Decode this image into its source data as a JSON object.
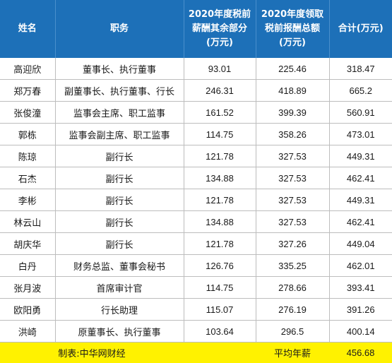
{
  "table": {
    "headers": {
      "name": "姓名",
      "position": "职务",
      "other_pay": [
        "2020年度税前",
        "薪酬其余部分",
        "(万元)"
      ],
      "total_pay": [
        "2020年度领取",
        "税前报酬总额",
        "(万元)"
      ],
      "sum": "合计(万元)"
    },
    "rows": [
      {
        "name": "高迎欣",
        "position": "董事长、执行董事",
        "other": "93.01",
        "total": "225.46",
        "sum": "318.47"
      },
      {
        "name": "郑万春",
        "position": "副董事长、执行董事、行长",
        "other": "246.31",
        "total": "418.89",
        "sum": "665.2"
      },
      {
        "name": "张俊潼",
        "position": "监事会主席、职工监事",
        "other": "161.52",
        "total": "399.39",
        "sum": "560.91"
      },
      {
        "name": "郭栋",
        "position": "监事会副主席、职工监事",
        "other": "114.75",
        "total": "358.26",
        "sum": "473.01"
      },
      {
        "name": "陈琼",
        "position": "副行长",
        "other": "121.78",
        "total": "327.53",
        "sum": "449.31"
      },
      {
        "name": "石杰",
        "position": "副行长",
        "other": "134.88",
        "total": "327.53",
        "sum": "462.41"
      },
      {
        "name": "李彬",
        "position": "副行长",
        "other": "121.78",
        "total": "327.53",
        "sum": "449.31"
      },
      {
        "name": "林云山",
        "position": "副行长",
        "other": "134.88",
        "total": "327.53",
        "sum": "462.41"
      },
      {
        "name": "胡庆华",
        "position": "副行长",
        "other": "121.78",
        "total": "327.26",
        "sum": "449.04"
      },
      {
        "name": "白丹",
        "position": "财务总监、董事会秘书",
        "other": "126.76",
        "total": "335.25",
        "sum": "462.01"
      },
      {
        "name": "张月波",
        "position": "首席审计官",
        "other": "114.75",
        "total": "278.66",
        "sum": "393.41"
      },
      {
        "name": "欧阳勇",
        "position": "行长助理",
        "other": "115.07",
        "total": "276.19",
        "sum": "391.26"
      },
      {
        "name": "洪崎",
        "position": "原董事长、执行董事",
        "other": "103.64",
        "total": "296.5",
        "sum": "400.14"
      }
    ]
  },
  "footer": {
    "credit": "制表:中华网财经",
    "avg_label": "平均年薪",
    "avg_value": "456.68"
  },
  "colors": {
    "header_bg": "#1d70b8",
    "footer_bg": "#fff200"
  }
}
